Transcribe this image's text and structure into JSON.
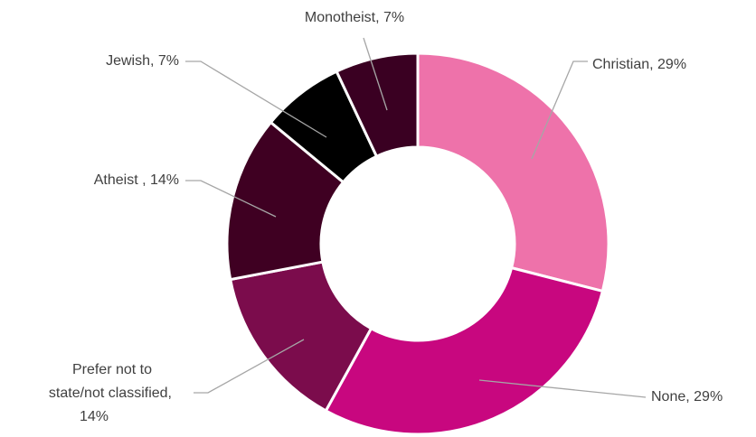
{
  "chart_data": {
    "type": "pie",
    "values": [
      29,
      29,
      14,
      14,
      7,
      7
    ],
    "value_labels": [
      "Christian, 29%",
      "None, 29%",
      "Prefer not to\nstate/not classified,\n14%",
      "Atheist , 14%",
      "Jewish, 7%",
      "Monotheist, 7%"
    ],
    "colors": [
      "#ee72aa",
      "#c8077f",
      "#7b0c4c",
      "#3f0022",
      "#000000",
      "#3a0022"
    ]
  }
}
